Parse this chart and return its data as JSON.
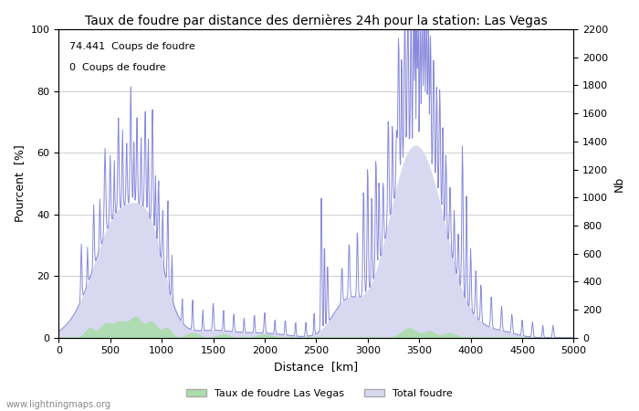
{
  "title": "Taux de foudre par distance des dernières 24h pour la station: Las Vegas",
  "xlabel": "Distance  [km]",
  "ylabel_left": "Pourcent  [%]",
  "ylabel_right": "Nb",
  "annotation_line1": "74.441  Coups de foudre",
  "annotation_line2": "0  Coups de foudre",
  "legend_label1": "Taux de foudre Las Vegas",
  "legend_label2": "Total foudre",
  "watermark": "www.lightningmaps.org",
  "xlim": [
    0,
    5000
  ],
  "ylim_left": [
    0,
    100
  ],
  "ylim_right": [
    0,
    2200
  ],
  "yticks_left": [
    0,
    20,
    40,
    60,
    80,
    100
  ],
  "yticks_right": [
    0,
    200,
    400,
    600,
    800,
    1000,
    1200,
    1400,
    1600,
    1800,
    2000,
    2200
  ],
  "xticks": [
    0,
    500,
    1000,
    1500,
    2000,
    2500,
    3000,
    3500,
    4000,
    4500,
    5000
  ],
  "color_line": "#8888dd",
  "color_fill_green": "#aaddaa",
  "color_fill_blue": "#d8d8f0",
  "bg_color": "#ffffff",
  "grid_color": "#bbbbbb",
  "title_fontsize": 10,
  "axis_fontsize": 9,
  "tick_fontsize": 8
}
